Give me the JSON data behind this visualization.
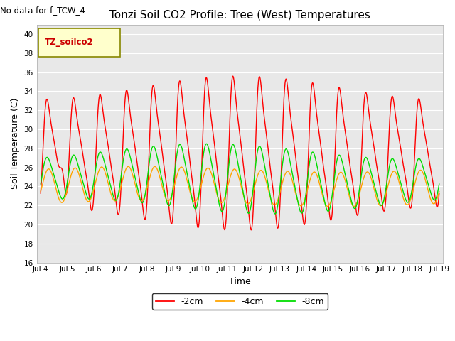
{
  "title": "Tonzi Soil CO2 Profile: Tree (West) Temperatures",
  "no_data_label": "No data for f_TCW_4",
  "xlabel": "Time",
  "ylabel": "Soil Temperature (C)",
  "ylim": [
    16,
    41
  ],
  "yticks": [
    16,
    18,
    20,
    22,
    24,
    26,
    28,
    30,
    32,
    34,
    36,
    38,
    40
  ],
  "bg_color": "#e8e8e8",
  "legend_label": "TZ_soilco2",
  "series": {
    "cm2": {
      "label": "-2cm",
      "color": "#ff0000",
      "linewidth": 1.0
    },
    "cm4": {
      "label": "-4cm",
      "color": "#ffa500",
      "linewidth": 1.0
    },
    "cm8": {
      "label": "-8cm",
      "color": "#00dd00",
      "linewidth": 1.0
    }
  },
  "x_start_day": 3.85,
  "x_end_day": 19.15,
  "xtick_positions": [
    4,
    5,
    6,
    7,
    8,
    9,
    10,
    11,
    12,
    13,
    14,
    15,
    16,
    17,
    18,
    19
  ],
  "xtick_labels": [
    "Jul 4",
    "Jul 5",
    "Jul 6",
    "Jul 7",
    "Jul 8",
    "Jul 9",
    "Jul 10",
    "Jul 11",
    "Jul 12",
    "Jul 13",
    "Jul 14",
    "Jul 15",
    "Jul 16",
    "Jul 17",
    "Jul 18",
    "Jul 19"
  ],
  "figsize": [
    6.4,
    4.8
  ],
  "dpi": 100
}
